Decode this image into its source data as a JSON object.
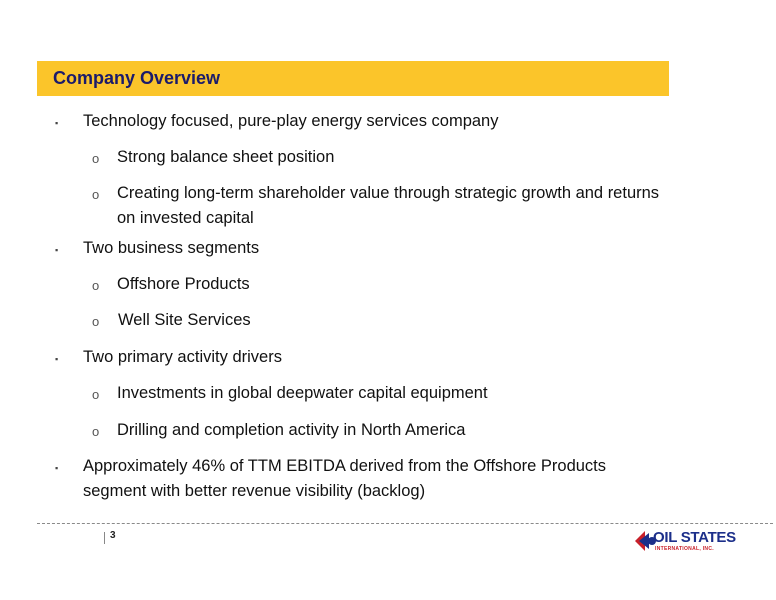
{
  "slide": {
    "title": "Company Overview",
    "bullets": [
      {
        "level": 1,
        "lines": [
          "Technology focused, pure-play energy services company"
        ]
      },
      {
        "level": 2,
        "lines": [
          "Strong balance sheet position"
        ]
      },
      {
        "level": 2,
        "lines": [
          "Creating long-term shareholder value through strategic growth and returns",
          "on invested capital"
        ]
      },
      {
        "level": 1,
        "lines": [
          "Two business segments"
        ]
      },
      {
        "level": 2,
        "lines": [
          "Offshore Products"
        ]
      },
      {
        "level": 2,
        "lines": [
          "Well Site Services"
        ]
      },
      {
        "level": 1,
        "lines": [
          "Two primary activity drivers"
        ]
      },
      {
        "level": 2,
        "lines": [
          "Investments in global deepwater capital equipment"
        ]
      },
      {
        "level": 2,
        "lines": [
          "Drilling and completion activity in North America"
        ]
      },
      {
        "level": 1,
        "lines": [
          "Approximately 46% of TTM EBITDA derived from the Offshore Products",
          "segment with better revenue visibility (backlog)"
        ]
      }
    ],
    "bullet_marks": {
      "level1": "▪",
      "level2": "o"
    },
    "page_number": "3"
  },
  "logo": {
    "name": "OIL STATES",
    "subtitle": "INTERNATIONAL, INC.",
    "colors": {
      "blue": "#1c2f8a",
      "red": "#c8202a"
    }
  },
  "colors": {
    "title_bar": "#fbc52a",
    "title_text": "#1b1b6b"
  }
}
